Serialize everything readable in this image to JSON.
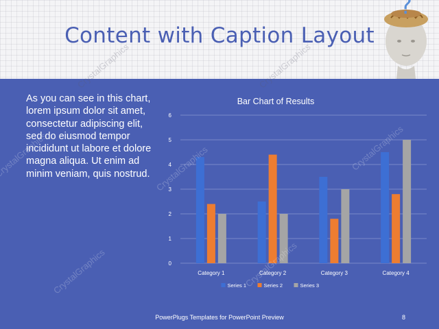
{
  "slide": {
    "title": "Content with Caption Layout",
    "caption": "As you can see in this chart, lorem ipsum dolor sit amet, consectetur adipiscing elit, sed do eiusmod tempor incididunt ut labore et dolore magna aliqua. Ut enim ad minim veniam, quis nostrud.",
    "footer": "PowerPlugs Templates for PowerPoint Preview",
    "page_number": "8",
    "watermark": "CrystalGraphics"
  },
  "colors": {
    "background": "#4a5fb3",
    "series": [
      "#3d6fd4",
      "#ed7d31",
      "#a5a5a5"
    ],
    "gridline": "#8b98d0"
  },
  "chart_data": {
    "type": "bar",
    "title": "Bar Chart of Results",
    "categories": [
      "Category 1",
      "Category 2",
      "Category 3",
      "Category 4"
    ],
    "series": [
      {
        "name": "Series 1",
        "values": [
          4.3,
          2.5,
          3.5,
          4.5
        ]
      },
      {
        "name": "Series 2",
        "values": [
          2.4,
          4.4,
          1.8,
          2.8
        ]
      },
      {
        "name": "Series 3",
        "values": [
          2,
          2,
          3,
          5
        ]
      }
    ],
    "yticks": [
      "0",
      "1",
      "2",
      "3",
      "4",
      "5",
      "6"
    ],
    "ylim": [
      0,
      6
    ],
    "grid": true,
    "legend": "bottom"
  }
}
